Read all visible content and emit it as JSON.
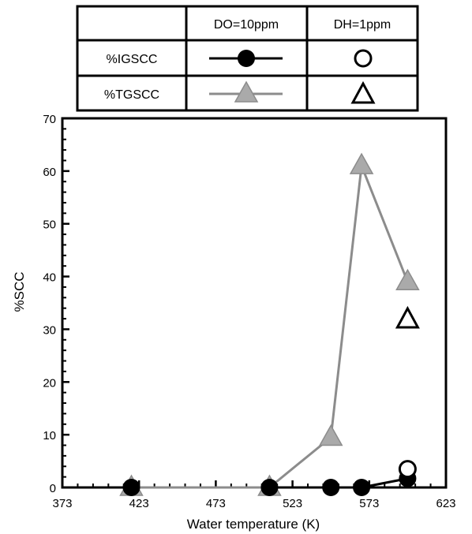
{
  "legend_table": {
    "headers": [
      "DO=10ppm",
      "DH=1ppm"
    ],
    "rows": [
      "%IGSCC",
      "%TGSCC"
    ]
  },
  "colors": {
    "igscc": "#000000",
    "tgscc_fill": "#aaaaaa",
    "tgscc_line": "#8c8c8c",
    "axis": "#000000"
  },
  "chart_data": {
    "type": "line",
    "xlabel": "Water temperature (K)",
    "ylabel": "%SCC",
    "xlim": [
      373,
      623
    ],
    "ylim": [
      0,
      70
    ],
    "xticks": [
      373,
      423,
      473,
      523,
      573,
      623
    ],
    "yticks": [
      0,
      10,
      20,
      30,
      40,
      50,
      60,
      70
    ],
    "grid": false,
    "legend_placement": "top, table above plot",
    "series": [
      {
        "name": "%IGSCC",
        "condition": "DO=10ppm",
        "marker": "filled-circle",
        "connected": true,
        "x": [
          418,
          508,
          548,
          568,
          598
        ],
        "y": [
          0,
          0,
          0,
          0,
          1.7
        ]
      },
      {
        "name": "%TGSCC",
        "condition": "DO=10ppm",
        "marker": "gray-triangle",
        "connected": true,
        "x": [
          418,
          508,
          548,
          568,
          598
        ],
        "y": [
          0,
          0,
          9.5,
          61,
          39
        ]
      },
      {
        "name": "%IGSCC",
        "condition": "DH=1ppm",
        "marker": "open-circle",
        "connected": false,
        "x": [
          598
        ],
        "y": [
          3.5
        ]
      },
      {
        "name": "%TGSCC",
        "condition": "DH=1ppm",
        "marker": "open-triangle",
        "connected": false,
        "x": [
          598
        ],
        "y": [
          32
        ]
      }
    ]
  }
}
